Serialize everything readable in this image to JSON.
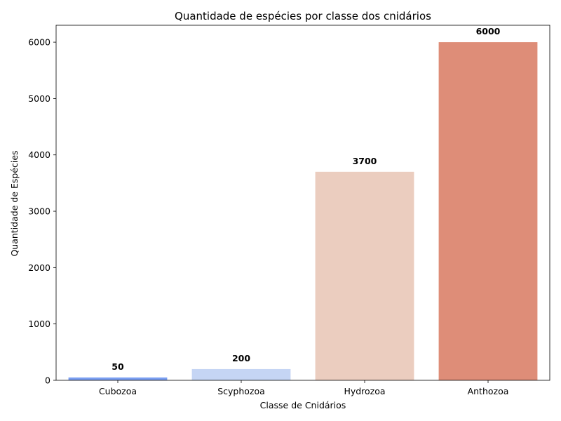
{
  "chart_data": {
    "type": "bar",
    "title": "Quantidade de espécies por classe dos cnidários",
    "xlabel": "Classe de Cnidários",
    "ylabel": "Quantidade de Espécies",
    "categories": [
      "Cubozoa",
      "Scyphozoa",
      "Hydrozoa",
      "Anthozoa"
    ],
    "values": [
      50,
      200,
      3700,
      6000
    ],
    "data_labels": [
      "50",
      "200",
      "3700",
      "6000"
    ],
    "colors": [
      "#7b9ff2",
      "#c5d5f4",
      "#ebcdbf",
      "#de8d78"
    ],
    "ylim": [
      0,
      6300
    ],
    "yticks": [
      0,
      1000,
      2000,
      3000,
      4000,
      5000,
      6000
    ],
    "ytick_labels": [
      "0",
      "1000",
      "2000",
      "3000",
      "4000",
      "5000",
      "6000"
    ],
    "grid": false,
    "legend": "none"
  }
}
